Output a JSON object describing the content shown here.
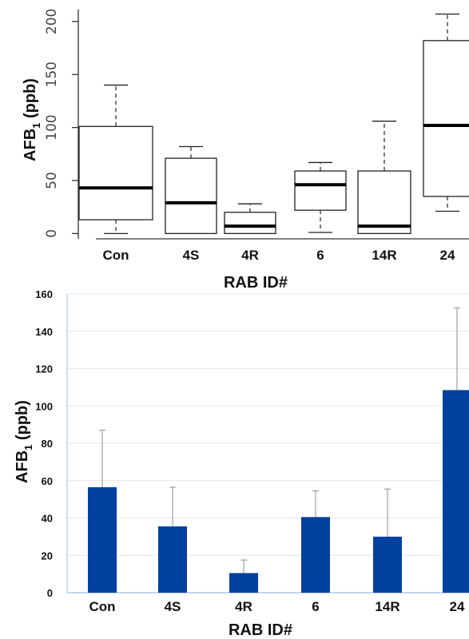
{
  "chart_data": [
    {
      "type": "box",
      "xlabel": "RAB ID#",
      "ylabel": "AFB",
      "ylabel_sub": "1",
      "ylabel_unit": "(ppb)",
      "ylim": [
        -5,
        215
      ],
      "yticks": [
        0,
        50,
        100,
        150,
        200
      ],
      "categories": [
        "Con",
        "4S",
        "4R",
        "6",
        "14R",
        "24"
      ],
      "boxes": [
        {
          "min": 0,
          "q1": 13,
          "median": 43,
          "q3": 101,
          "max": 140
        },
        {
          "min": 0,
          "q1": 0,
          "median": 29,
          "q3": 71,
          "max": 82
        },
        {
          "min": 0,
          "q1": 0,
          "median": 7,
          "q3": 20,
          "max": 28
        },
        {
          "min": 1,
          "q1": 22,
          "median": 46,
          "q3": 59,
          "max": 67
        },
        {
          "min": 0,
          "q1": 0,
          "median": 7,
          "q3": 59,
          "max": 106
        },
        {
          "min": 21,
          "q1": 35,
          "median": 102,
          "q3": 182,
          "max": 207
        }
      ],
      "grid": false
    },
    {
      "type": "bar",
      "xlabel": "RAB ID#",
      "ylabel": "AFB",
      "ylabel_sub": "1",
      "ylabel_unit": "(ppb)",
      "ylim": [
        0,
        160
      ],
      "yticks": [
        0,
        20,
        40,
        60,
        80,
        100,
        120,
        140,
        160
      ],
      "categories": [
        "Con",
        "4S",
        "4R",
        "6",
        "14R",
        "24"
      ],
      "values": [
        56.5,
        35.5,
        10.5,
        40.5,
        30,
        108.5
      ],
      "error_upper": [
        87,
        56.5,
        17.5,
        54.5,
        55.5,
        152.5
      ],
      "grid": true,
      "colors": {
        "bar": "#0041A0",
        "grid": "#e6e6e6",
        "error": "#8c8c8c",
        "axis": "#9dbbe3"
      }
    }
  ]
}
